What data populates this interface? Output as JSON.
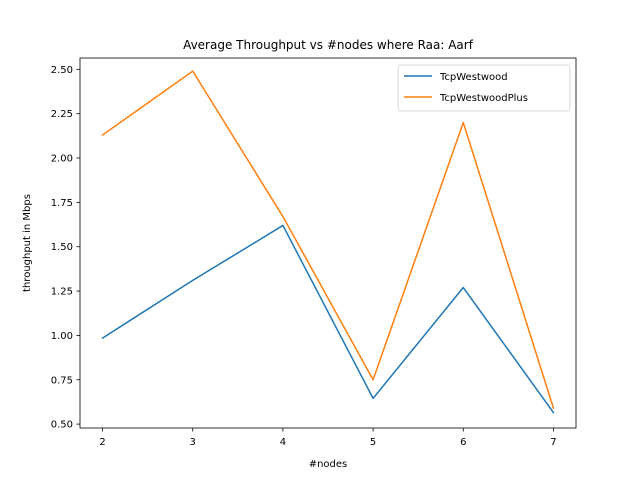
{
  "chart_data": {
    "type": "line",
    "title": "Average Throughput vs #nodes where Raa: Aarf",
    "xlabel": "#nodes",
    "ylabel": "throughput in Mbps",
    "x": [
      2,
      3,
      4,
      5,
      6,
      7
    ],
    "xticks": [
      "2",
      "3",
      "4",
      "5",
      "6",
      "7"
    ],
    "yticks": [
      "0.50",
      "0.75",
      "1.00",
      "1.25",
      "1.50",
      "1.75",
      "2.00",
      "2.25",
      "2.50"
    ],
    "xlim": [
      1.75,
      7.25
    ],
    "ylim": [
      0.478,
      2.564
    ],
    "grid": false,
    "legend_position": "top-right",
    "series": [
      {
        "name": "TcpWestwood",
        "color": "#1f77b4",
        "values": [
          0.985,
          1.31,
          1.62,
          0.645,
          1.27,
          0.565
        ]
      },
      {
        "name": "TcpWestwoodPlus",
        "color": "#ff7f0e",
        "values": [
          2.13,
          2.49,
          1.67,
          0.75,
          2.2,
          0.59
        ]
      }
    ]
  }
}
